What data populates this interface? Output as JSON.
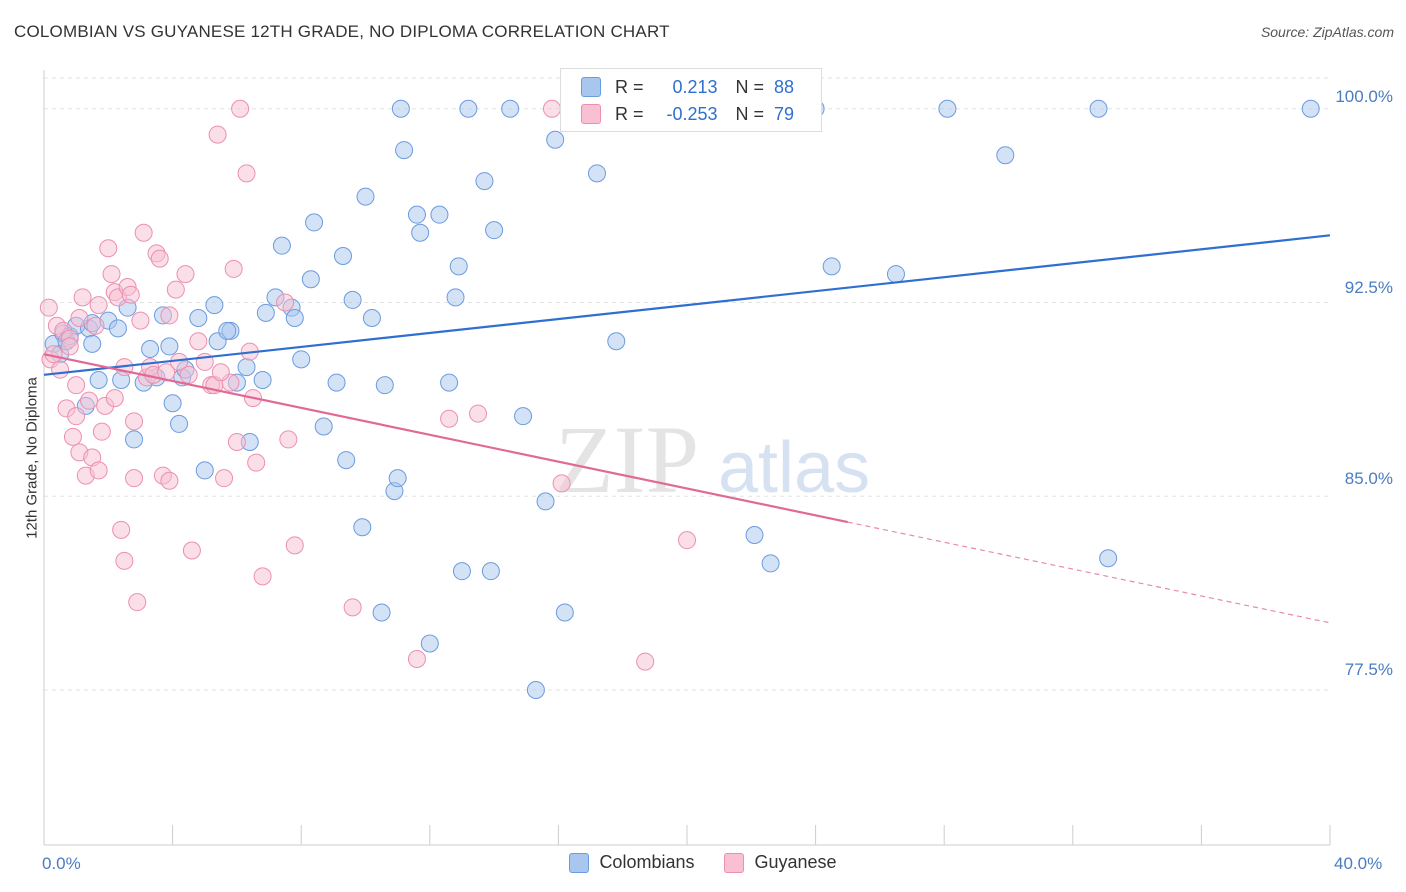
{
  "title": "COLOMBIAN VS GUYANESE 12TH GRADE, NO DIPLOMA CORRELATION CHART",
  "source": "Source: ZipAtlas.com",
  "watermark": {
    "zip": "ZIP",
    "atlas": "atlas"
  },
  "legend": {
    "r_label": "R =",
    "n_label": "N =",
    "rows": [
      {
        "r": "0.213",
        "n": "88",
        "color": "#a9c6ee",
        "border": "#6b9be0"
      },
      {
        "r": "-0.253",
        "n": "79",
        "color": "#f8c0d2",
        "border": "#ec8fb0"
      }
    ]
  },
  "bottom_legend": {
    "colombians": "Colombians",
    "guyanese": "Guyanese"
  },
  "chart_data": {
    "type": "scatter",
    "title": "COLOMBIAN VS GUYANESE 12TH GRADE, NO DIPLOMA CORRELATION CHART",
    "xlabel": "",
    "ylabel": "12th Grade, No Diploma",
    "xlim": [
      0,
      40
    ],
    "ylim": [
      71.5,
      101.5
    ],
    "x_tick_labels": [
      "0.0%",
      "40.0%"
    ],
    "y_ticks": [
      77.5,
      85.0,
      92.5,
      100.0
    ],
    "y_tick_labels": [
      "77.5%",
      "85.0%",
      "92.5%",
      "100.0%"
    ],
    "grid": true,
    "series": [
      {
        "name": "Colombians",
        "color": "#6b9be0",
        "fill": "#a9c6ee",
        "trend": {
          "x": [
            0,
            40
          ],
          "y": [
            89.7,
            95.1
          ]
        },
        "points": [
          [
            0.3,
            90.9
          ],
          [
            0.5,
            90.5
          ],
          [
            0.6,
            91.3
          ],
          [
            0.7,
            91.0
          ],
          [
            0.8,
            91.2
          ],
          [
            1.0,
            91.6
          ],
          [
            1.4,
            91.5
          ],
          [
            1.5,
            91.7
          ],
          [
            1.5,
            90.9
          ],
          [
            1.3,
            88.5
          ],
          [
            1.7,
            89.5
          ],
          [
            2.0,
            91.8
          ],
          [
            2.3,
            91.5
          ],
          [
            2.4,
            89.5
          ],
          [
            2.6,
            92.3
          ],
          [
            2.8,
            87.2
          ],
          [
            3.1,
            89.4
          ],
          [
            3.3,
            90.7
          ],
          [
            3.5,
            89.6
          ],
          [
            3.7,
            92.0
          ],
          [
            3.9,
            90.8
          ],
          [
            4.0,
            88.6
          ],
          [
            4.2,
            87.8
          ],
          [
            4.3,
            89.6
          ],
          [
            4.4,
            89.9
          ],
          [
            4.8,
            91.9
          ],
          [
            5.0,
            86.0
          ],
          [
            5.3,
            92.4
          ],
          [
            5.4,
            91.0
          ],
          [
            5.8,
            91.4
          ],
          [
            5.7,
            91.4
          ],
          [
            6.3,
            90.0
          ],
          [
            6.4,
            87.1
          ],
          [
            6.0,
            89.4
          ],
          [
            6.8,
            89.5
          ],
          [
            6.9,
            92.1
          ],
          [
            7.2,
            92.7
          ],
          [
            7.4,
            94.7
          ],
          [
            7.7,
            92.3
          ],
          [
            7.8,
            91.9
          ],
          [
            8.0,
            90.3
          ],
          [
            8.3,
            93.4
          ],
          [
            8.4,
            95.6
          ],
          [
            8.7,
            87.7
          ],
          [
            9.1,
            89.4
          ],
          [
            9.3,
            94.3
          ],
          [
            9.4,
            86.4
          ],
          [
            9.6,
            92.6
          ],
          [
            9.9,
            83.8
          ],
          [
            10.0,
            96.6
          ],
          [
            10.2,
            91.9
          ],
          [
            10.5,
            80.5
          ],
          [
            10.6,
            89.3
          ],
          [
            10.9,
            85.2
          ],
          [
            11.0,
            85.7
          ],
          [
            11.1,
            100.0
          ],
          [
            11.2,
            98.4
          ],
          [
            11.6,
            95.9
          ],
          [
            11.7,
            95.2
          ],
          [
            12.0,
            79.3
          ],
          [
            12.3,
            95.9
          ],
          [
            12.6,
            89.4
          ],
          [
            12.8,
            92.7
          ],
          [
            12.9,
            93.9
          ],
          [
            13.0,
            82.1
          ],
          [
            13.2,
            100.0
          ],
          [
            13.7,
            97.2
          ],
          [
            13.9,
            82.1
          ],
          [
            14.0,
            95.3
          ],
          [
            14.5,
            100.0
          ],
          [
            14.9,
            88.1
          ],
          [
            15.3,
            77.5
          ],
          [
            15.6,
            84.8
          ],
          [
            15.9,
            98.8
          ],
          [
            16.2,
            80.5
          ],
          [
            17.2,
            97.5
          ],
          [
            17.8,
            91.0
          ],
          [
            21.0,
            100.0
          ],
          [
            22.1,
            83.5
          ],
          [
            22.6,
            82.4
          ],
          [
            24.0,
            100.0
          ],
          [
            24.5,
            93.9
          ],
          [
            26.5,
            93.6
          ],
          [
            28.1,
            100.0
          ],
          [
            29.9,
            98.2
          ],
          [
            32.8,
            100.0
          ],
          [
            33.1,
            82.6
          ],
          [
            39.4,
            100.0
          ]
        ]
      },
      {
        "name": "Guyanese",
        "color": "#ec8fb0",
        "fill": "#f8c0d2",
        "trend": {
          "x": [
            0,
            25
          ],
          "y": [
            90.5,
            84.0
          ]
        },
        "trend_extension": {
          "x": [
            25,
            40
          ],
          "y": [
            84.0,
            80.1
          ]
        },
        "points": [
          [
            0.15,
            92.3
          ],
          [
            0.2,
            90.3
          ],
          [
            0.3,
            90.5
          ],
          [
            0.4,
            91.6
          ],
          [
            0.6,
            91.4
          ],
          [
            0.8,
            91.1
          ],
          [
            0.7,
            88.4
          ],
          [
            0.8,
            90.8
          ],
          [
            0.9,
            87.3
          ],
          [
            1.0,
            88.1
          ],
          [
            1.0,
            89.3
          ],
          [
            1.1,
            86.7
          ],
          [
            1.2,
            92.7
          ],
          [
            1.3,
            85.8
          ],
          [
            1.4,
            88.7
          ],
          [
            1.5,
            86.5
          ],
          [
            1.6,
            91.6
          ],
          [
            1.7,
            92.4
          ],
          [
            1.7,
            86.0
          ],
          [
            1.8,
            87.5
          ],
          [
            1.9,
            88.5
          ],
          [
            2.0,
            94.6
          ],
          [
            2.1,
            93.6
          ],
          [
            2.2,
            88.8
          ],
          [
            2.2,
            92.9
          ],
          [
            2.3,
            92.7
          ],
          [
            2.4,
            83.7
          ],
          [
            2.5,
            82.5
          ],
          [
            2.5,
            90.0
          ],
          [
            2.6,
            93.1
          ],
          [
            2.8,
            85.7
          ],
          [
            2.8,
            87.9
          ],
          [
            2.9,
            80.9
          ],
          [
            3.0,
            91.8
          ],
          [
            3.1,
            95.2
          ],
          [
            3.2,
            89.6
          ],
          [
            3.3,
            90.0
          ],
          [
            3.4,
            89.7
          ],
          [
            3.5,
            94.4
          ],
          [
            3.6,
            94.2
          ],
          [
            3.7,
            85.8
          ],
          [
            3.8,
            89.8
          ],
          [
            3.9,
            85.6
          ],
          [
            4.1,
            93.0
          ],
          [
            4.2,
            90.2
          ],
          [
            4.4,
            93.6
          ],
          [
            4.5,
            89.7
          ],
          [
            4.6,
            82.9
          ],
          [
            4.8,
            91.0
          ],
          [
            5.0,
            90.2
          ],
          [
            5.2,
            89.3
          ],
          [
            5.3,
            89.3
          ],
          [
            5.4,
            99.0
          ],
          [
            5.6,
            85.7
          ],
          [
            5.8,
            89.4
          ],
          [
            5.9,
            93.8
          ],
          [
            6.0,
            87.1
          ],
          [
            6.1,
            100.0
          ],
          [
            6.3,
            97.5
          ],
          [
            6.4,
            90.6
          ],
          [
            6.5,
            88.8
          ],
          [
            6.6,
            86.3
          ],
          [
            6.8,
            81.9
          ],
          [
            7.5,
            92.5
          ],
          [
            7.6,
            87.2
          ],
          [
            7.8,
            83.1
          ],
          [
            9.6,
            80.7
          ],
          [
            11.6,
            78.7
          ],
          [
            12.6,
            88.0
          ],
          [
            13.5,
            88.2
          ],
          [
            15.8,
            100.0
          ],
          [
            16.1,
            85.5
          ],
          [
            18.7,
            78.6
          ],
          [
            20.0,
            83.3
          ],
          [
            1.1,
            91.9
          ],
          [
            0.5,
            89.9
          ],
          [
            2.7,
            92.8
          ],
          [
            3.9,
            92.0
          ],
          [
            5.5,
            89.8
          ]
        ]
      }
    ]
  }
}
